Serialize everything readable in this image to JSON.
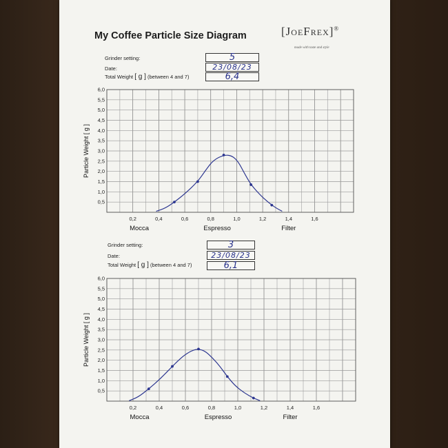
{
  "header": {
    "title": "My Coffee Particle Size Diagram",
    "logo_text": "JoeFrex",
    "logo_mark": "®",
    "tagline": "made with taste and style"
  },
  "forms": [
    {
      "grinder_label": "Grinder setting:",
      "date_label": "Date:",
      "weight_label_a": "Total Weight",
      "weight_unit": "[ g ]",
      "weight_label_b": "(between 4 and 7)",
      "grinder_value": "5",
      "date_value": "23/08/23",
      "weight_value": "6,4"
    },
    {
      "grinder_label": "Grinder setting:",
      "date_label": "Date:",
      "weight_label_a": "Total Weight",
      "weight_unit": "[ g ]",
      "weight_label_b": "(between 4 and 7)",
      "grinder_value": "3",
      "date_value": "23/08/23",
      "weight_value": "6,1"
    }
  ],
  "chart_data": [
    {
      "type": "line",
      "ylabel": "Particle Weight [ g ]",
      "xlabel": "",
      "x_ticks": [
        "0,2",
        "0,4",
        "0,6",
        "0,8",
        "1,0",
        "1,2",
        "1,4",
        "1,6"
      ],
      "y_ticks": [
        "0,5",
        "1,0",
        "1,5",
        "2,0",
        "2,5",
        "3,0",
        "3,5",
        "4,0",
        "4,5",
        "5,0",
        "5,5",
        "6,0"
      ],
      "xlim": [
        0,
        1.9
      ],
      "ylim": [
        0,
        6.0
      ],
      "grid": true,
      "categories": [
        "Mocca",
        "Espresso",
        "Filter"
      ],
      "category_positions": [
        0.25,
        0.85,
        1.4
      ],
      "series": [
        {
          "points": [
            [
              0.52,
              0.5
            ],
            [
              0.7,
              1.5
            ],
            [
              0.9,
              2.8
            ],
            [
              1.11,
              1.35
            ],
            [
              1.27,
              0.35
            ]
          ],
          "curve": [
            [
              0.38,
              0.05
            ],
            [
              0.45,
              0.2
            ],
            [
              0.52,
              0.5
            ],
            [
              0.6,
              0.9
            ],
            [
              0.7,
              1.5
            ],
            [
              0.76,
              2.05
            ],
            [
              0.82,
              2.55
            ],
            [
              0.9,
              2.8
            ],
            [
              0.96,
              2.78
            ],
            [
              1.01,
              2.5
            ],
            [
              1.06,
              1.9
            ],
            [
              1.11,
              1.35
            ],
            [
              1.18,
              0.85
            ],
            [
              1.24,
              0.5
            ],
            [
              1.3,
              0.22
            ],
            [
              1.35,
              0.05
            ]
          ],
          "color": "#2c3690"
        }
      ]
    },
    {
      "type": "line",
      "ylabel": "Particle Weight [ g ]",
      "xlabel": "",
      "x_ticks": [
        "0,2",
        "0,4",
        "0,6",
        "0,8",
        "1,0",
        "1,2",
        "1,4",
        "1,6"
      ],
      "y_ticks": [
        "0,5",
        "1,0",
        "1,5",
        "2,0",
        "2,5",
        "3,0",
        "3,5",
        "4,0",
        "4,5",
        "5,0",
        "5,5",
        "6,0"
      ],
      "xlim": [
        0,
        1.9
      ],
      "ylim": [
        0,
        6.0
      ],
      "grid": true,
      "categories": [
        "Mocca",
        "Espresso",
        "Filter"
      ],
      "category_positions": [
        0.25,
        0.85,
        1.4
      ],
      "series": [
        {
          "points": [
            [
              0.32,
              0.6
            ],
            [
              0.5,
              1.7
            ],
            [
              0.7,
              2.55
            ],
            [
              0.92,
              1.2
            ],
            [
              1.12,
              0.15
            ]
          ],
          "curve": [
            [
              0.17,
              0.02
            ],
            [
              0.24,
              0.2
            ],
            [
              0.32,
              0.6
            ],
            [
              0.41,
              1.1
            ],
            [
              0.5,
              1.7
            ],
            [
              0.58,
              2.2
            ],
            [
              0.65,
              2.48
            ],
            [
              0.7,
              2.55
            ],
            [
              0.75,
              2.45
            ],
            [
              0.81,
              2.1
            ],
            [
              0.87,
              1.65
            ],
            [
              0.92,
              1.2
            ],
            [
              0.98,
              0.75
            ],
            [
              1.05,
              0.4
            ],
            [
              1.12,
              0.15
            ],
            [
              1.17,
              0.02
            ]
          ],
          "color": "#2c3690"
        }
      ]
    }
  ]
}
